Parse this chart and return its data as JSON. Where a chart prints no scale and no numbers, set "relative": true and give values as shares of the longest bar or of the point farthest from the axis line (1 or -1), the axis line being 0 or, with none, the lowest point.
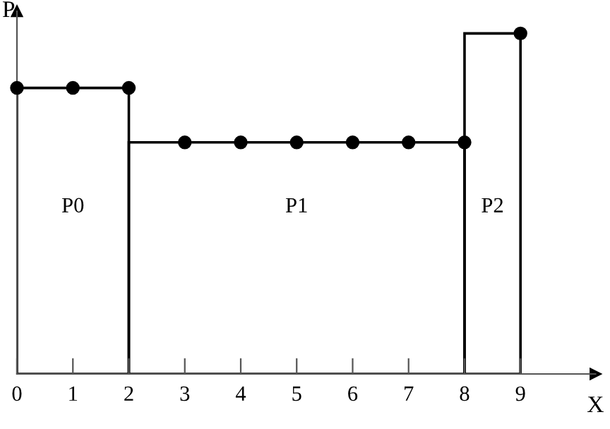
{
  "chart_data": {
    "type": "histogram",
    "relative": true,
    "xlabel": "X",
    "ylabel": "P",
    "bins": [
      0,
      2,
      8,
      9
    ],
    "values": [
      0.84,
      0.68,
      1
    ],
    "color": "#000000",
    "series": [
      {
        "type": "scatter",
        "color": "#000000",
        "marker": "circle",
        "x": [
          0,
          1,
          2,
          3,
          4,
          5,
          6,
          7,
          8,
          9
        ],
        "values": [
          0.84,
          0.84,
          0.84,
          0.68,
          0.68,
          0.68,
          0.68,
          0.68,
          0.68,
          1
        ]
      }
    ],
    "annotations": [
      "P0",
      "P1",
      "P2"
    ],
    "xlim": [
      0,
      10.34
    ],
    "xticks": [
      0,
      1,
      2,
      3,
      4,
      5,
      6,
      7,
      8,
      9
    ],
    "grid": false
  }
}
